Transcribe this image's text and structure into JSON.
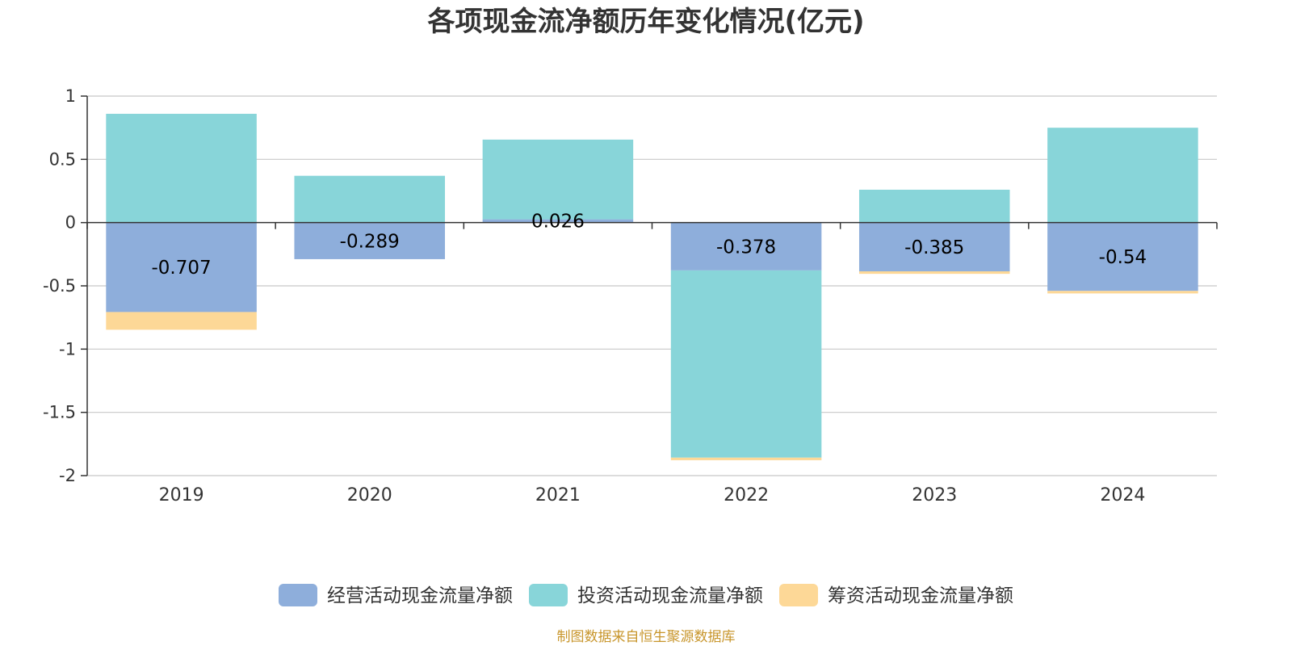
{
  "chart_data": {
    "type": "bar",
    "stacked": true,
    "title": "各项现金流净额历年变化情况(亿元)",
    "categories": [
      "2019",
      "2020",
      "2021",
      "2022",
      "2023",
      "2024"
    ],
    "ylim": [
      -2,
      1
    ],
    "yticks": [
      "1",
      "0.5",
      "0",
      "-0.5",
      "-1",
      "-1.5",
      "-2"
    ],
    "ytick_values": [
      1,
      0.5,
      0,
      -0.5,
      -1,
      -1.5,
      -2
    ],
    "grid": true,
    "legend_position": "bottom",
    "series": [
      {
        "name": "经营活动现金流量净额",
        "color": "#8eaedb",
        "values": [
          -0.707,
          -0.289,
          0.026,
          -0.378,
          -0.385,
          -0.54
        ],
        "labels": [
          "-0.707",
          "-0.289",
          "0.026",
          "-0.378",
          "-0.385",
          "-0.54"
        ]
      },
      {
        "name": "投资活动现金流量净额",
        "color": "#88d5d9",
        "values": [
          0.86,
          0.37,
          0.63,
          -1.48,
          0.26,
          0.75
        ]
      },
      {
        "name": "筹资活动现金流量净额",
        "color": "#fdd897",
        "values": [
          -0.14,
          0.0,
          0.0,
          -0.02,
          -0.02,
          -0.02
        ]
      }
    ]
  },
  "footer": {
    "source": "制图数据来自恒生聚源数据库"
  }
}
